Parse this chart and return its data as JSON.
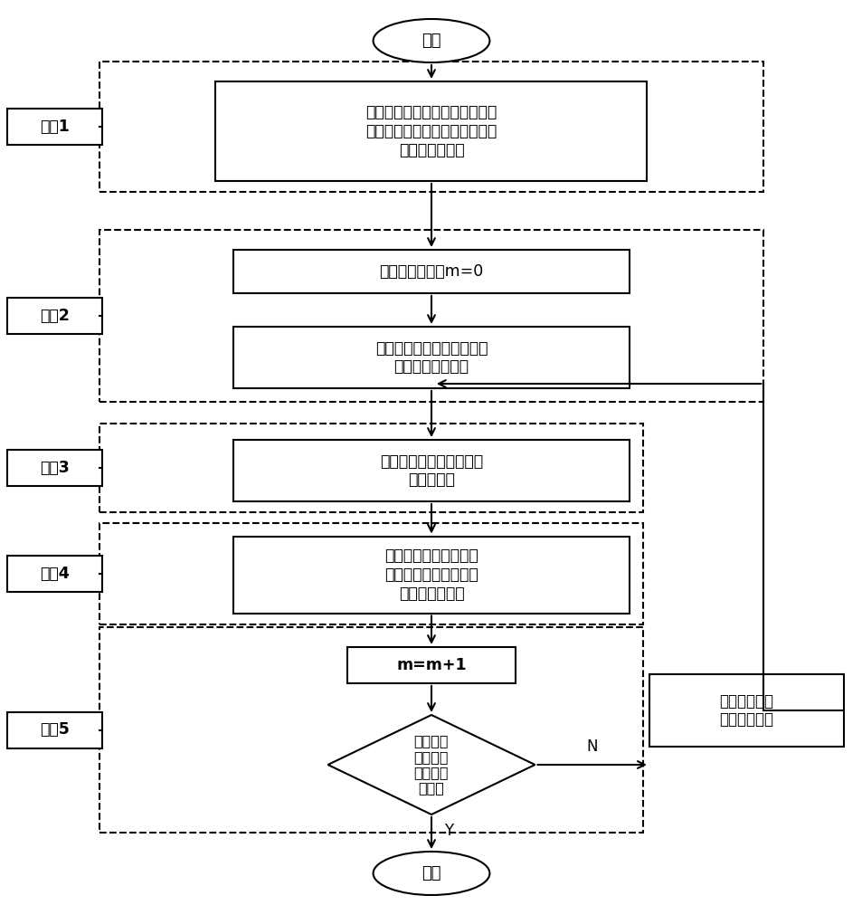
{
  "bg_color": "#ffffff",
  "fig_width": 9.54,
  "fig_height": 10.0,
  "start_text": "开始",
  "end_text": "结束",
  "step1_text": "潮流计算节点阻抗矩阵，求解多\n馈入直流间交互作用因子，确定\n调相机安装区域",
  "step2a_text": "调相机安装节点m=0",
  "step2b_text": "直流耦合紧密区域内改进电\n压稳定性因子计算",
  "step3_text": "计算单个节点无功提升控\n制评估指标",
  "step4_text": "对安装区域内所有节点\n无功提升控制评估指标\n进行计算并排序",
  "m_text": "m=m+1",
  "diamond_text": "调相机安\n装容量是\n否达到预\n设目标",
  "side_text": "排序第一的节\n点安装调相机",
  "label1": "步骤1",
  "label2": "步骤2",
  "label3": "步骤3",
  "label4": "步骤4",
  "label5": "步骤5",
  "label_N": "N",
  "label_Y": "Y",
  "main_color": "#000000",
  "box_color": "#ffffff",
  "line_width": 1.5
}
